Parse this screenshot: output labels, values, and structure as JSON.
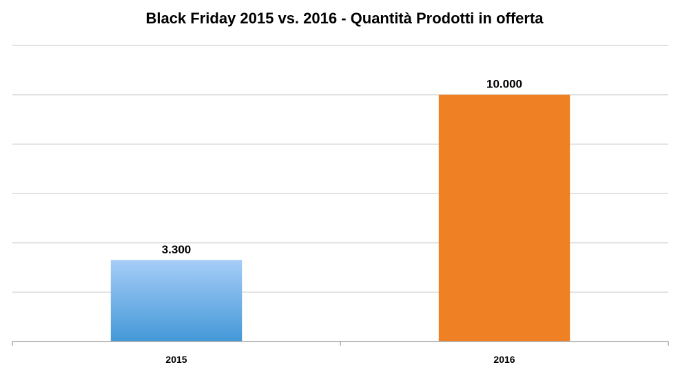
{
  "chart_data": {
    "type": "bar",
    "title": "Black Friday 2015 vs. 2016 - Quantità Prodotti in offerta",
    "categories": [
      "2015",
      "2016"
    ],
    "values": [
      3300,
      10000
    ],
    "data_labels": [
      "3.300",
      "10.000"
    ],
    "ylim": [
      0,
      12000
    ],
    "ytick_step": 2000,
    "grid": true,
    "legend": "none",
    "colors": {
      "bar_2015_top": "#a6cdf7",
      "bar_2015_bottom": "#4398d8",
      "bar_2016": "#f08024",
      "grid": "#d9d9d9",
      "axis": "#a6a6a6"
    }
  }
}
